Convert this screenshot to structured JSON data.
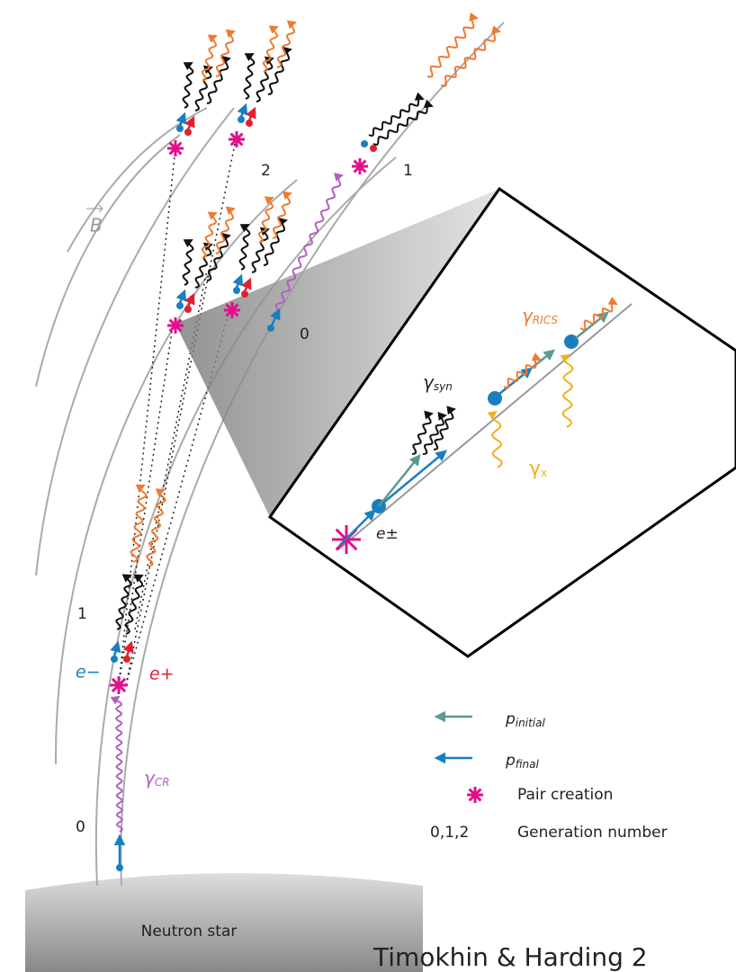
{
  "field_label": "B",
  "generation_labels": {
    "top_left": "2",
    "top_right": "1",
    "middle": "0",
    "lower_left": "1",
    "bottom_left": "0"
  },
  "particles": {
    "electron": "e−",
    "positron": "e+",
    "pair": "e±"
  },
  "photons": {
    "curvature": {
      "symbol": "γ",
      "subscript": "CR"
    },
    "synchrotron": {
      "symbol": "γ",
      "subscript": "syn"
    },
    "rics": {
      "symbol": "γ",
      "subscript": "RICS"
    },
    "xray": {
      "symbol": "γ",
      "subscript": "x"
    }
  },
  "legend": [
    {
      "symbol": "p",
      "subscript": "initial"
    },
    {
      "symbol": "p",
      "subscript": "final"
    },
    {
      "label": "Pair creation"
    },
    {
      "symbol": "0,1,2",
      "label": "Generation number"
    }
  ],
  "star_label": "Neutron star",
  "credit": "Timokhin & Harding 2"
}
